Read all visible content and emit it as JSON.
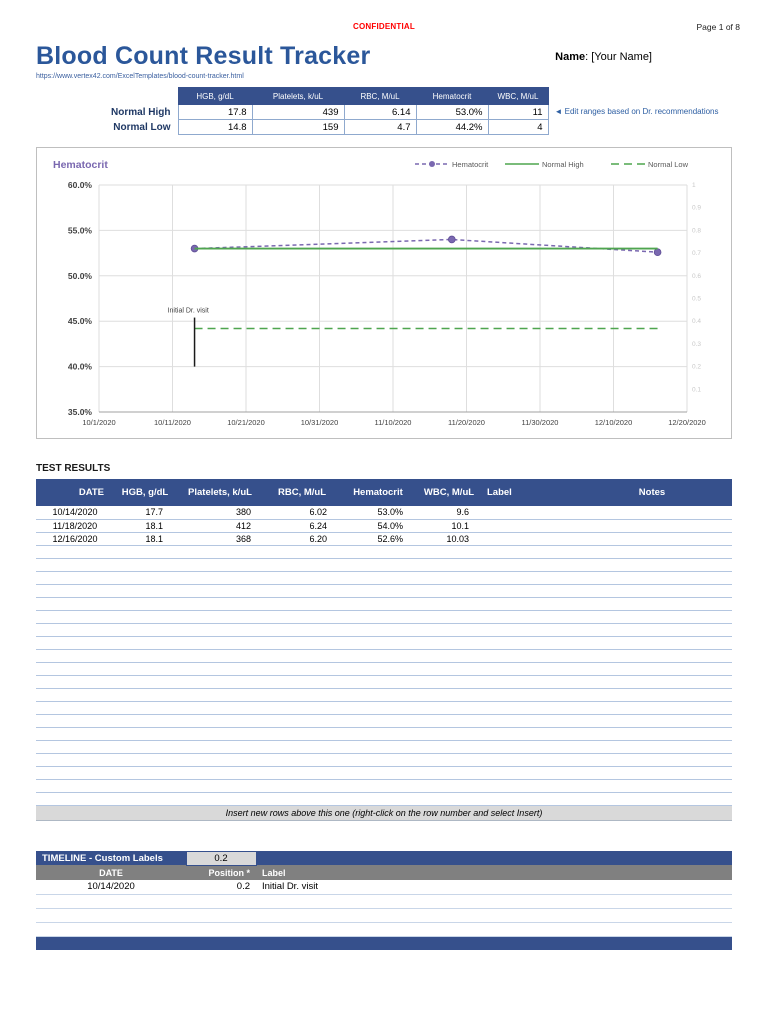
{
  "header": {
    "confidential": "CONFIDENTIAL",
    "page_number": "Page 1 of 8",
    "title": "Blood Count Result Tracker",
    "name_label": "Name",
    "name_rest": ": [Your Name]",
    "url": "https://www.vertex42.com/ExcelTemplates/blood-count-tracker.html"
  },
  "colors": {
    "header_navy": "#36508C",
    "header_gray": "#808080",
    "accent_purple": "#7A68B0",
    "accent_green": "#4FA54F",
    "confidential_red": "#FF0000",
    "title_blue": "#2B579A"
  },
  "ranges": {
    "columns": [
      "HGB, g/dL",
      "Platelets, k/uL",
      "RBC, M/uL",
      "Hematocrit",
      "WBC, M/uL"
    ],
    "rows": [
      {
        "label": "Normal High",
        "values": [
          "17.8",
          "439",
          "6.14",
          "53.0%",
          "11"
        ]
      },
      {
        "label": "Normal Low",
        "values": [
          "14.8",
          "159",
          "4.7",
          "44.2%",
          "4"
        ]
      }
    ],
    "note": "◄ Edit ranges based on Dr. recommendations"
  },
  "chart_data": {
    "type": "line",
    "title": "Hematocrit",
    "title_color": "#7A68B0",
    "x_ticks": [
      "10/1/2020",
      "10/11/2020",
      "10/21/2020",
      "10/31/2020",
      "11/10/2020",
      "11/20/2020",
      "11/30/2020",
      "12/10/2020",
      "12/20/2020"
    ],
    "y_ticks": [
      60,
      55,
      50,
      45,
      40,
      35
    ],
    "y_tick_labels": [
      "60.0%",
      "55.0%",
      "50.0%",
      "45.0%",
      "40.0%",
      "35.0%"
    ],
    "ylim": [
      35,
      60
    ],
    "y2_labels": [
      "1",
      "0.9",
      "0.8",
      "0.7",
      "0.6",
      "0.5",
      "0.4",
      "0.3",
      "0.2",
      "0.1"
    ],
    "y2lim": [
      0,
      1
    ],
    "grid": true,
    "legend_position": "top-right",
    "series": [
      {
        "name": "Hematocrit",
        "color": "#7A68B0",
        "style": "dashed",
        "markers": true,
        "x": [
          "10/14/2020",
          "11/18/2020",
          "12/16/2020"
        ],
        "y": [
          53.0,
          54.0,
          52.6
        ]
      },
      {
        "name": "Normal High",
        "color": "#4FA54F",
        "style": "solid",
        "markers": false,
        "x": [
          "10/14/2020",
          "12/16/2020"
        ],
        "y": [
          53.0,
          53.0
        ]
      },
      {
        "name": "Normal Low",
        "color": "#4FA54F",
        "style": "long-dash",
        "markers": false,
        "x": [
          "10/14/2020",
          "12/16/2020"
        ],
        "y": [
          44.2,
          44.2
        ]
      }
    ],
    "annotations": [
      {
        "label": "Initial Dr. visit",
        "x": "10/14/2020",
        "y_from": 40.0,
        "y_to": 45.4
      }
    ]
  },
  "results": {
    "heading": "TEST RESULTS",
    "columns": [
      "DATE",
      "HGB, g/dL",
      "Platelets, k/uL",
      "RBC, M/uL",
      "Hematocrit",
      "WBC, M/uL",
      "Label",
      "Notes"
    ],
    "rows": [
      [
        "10/14/2020",
        "17.7",
        "380",
        "6.02",
        "53.0%",
        "9.6",
        "",
        ""
      ],
      [
        "11/18/2020",
        "18.1",
        "412",
        "6.24",
        "54.0%",
        "10.1",
        "",
        ""
      ],
      [
        "12/16/2020",
        "18.1",
        "368",
        "6.20",
        "52.6%",
        "10.03",
        "",
        ""
      ]
    ],
    "empty_row_count": 20,
    "footer_note": "Insert new rows above this one (right-click on the row number and select Insert)"
  },
  "timeline": {
    "title": "TIMELINE - Custom Labels",
    "position_value": "0.2",
    "columns": [
      "DATE",
      "Position *",
      "Label"
    ],
    "rows": [
      [
        "10/14/2020",
        "0.2",
        "Initial Dr. visit"
      ]
    ],
    "empty_row_count": 3
  }
}
